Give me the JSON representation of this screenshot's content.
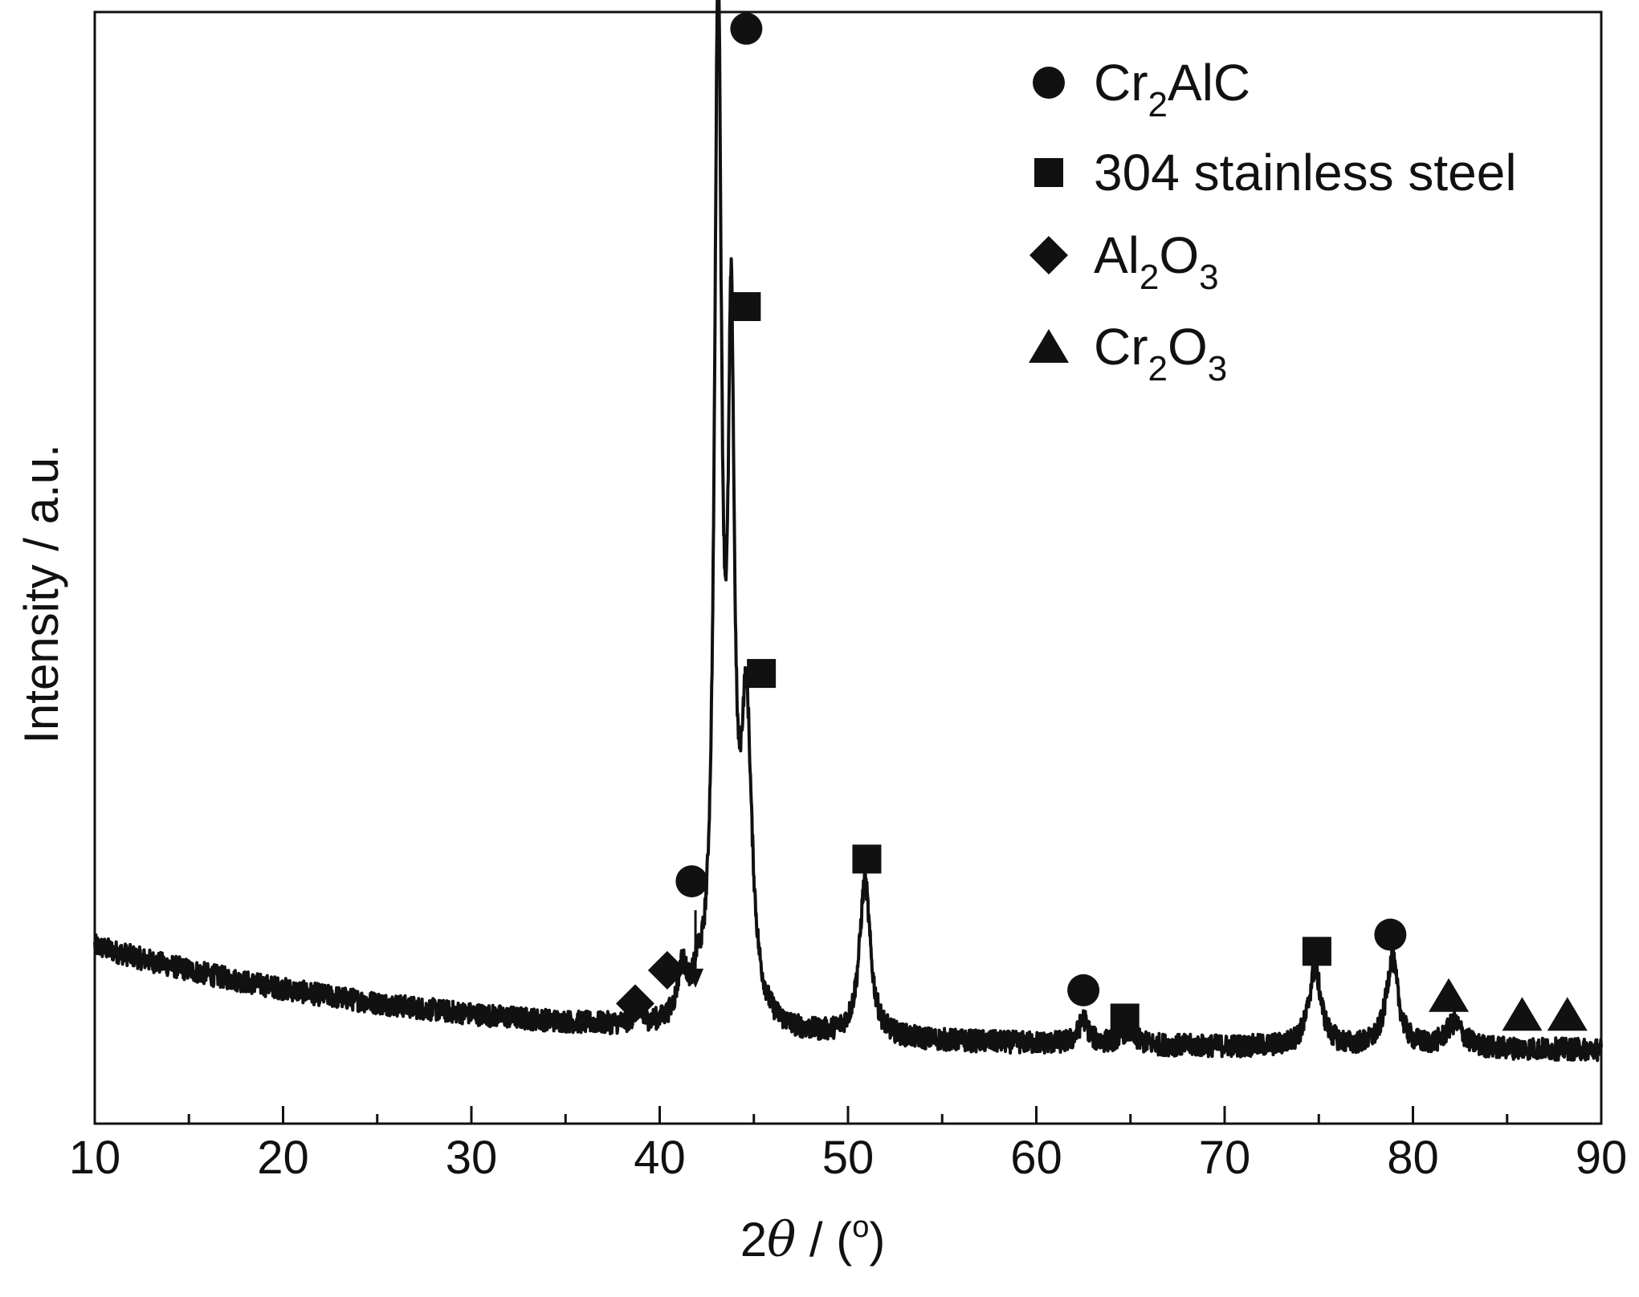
{
  "chart_data": {
    "type": "line",
    "xlabel": {
      "prefix": "2",
      "symbol": "θ",
      "suffix": " / (",
      "degree": "o",
      "close": ")"
    },
    "ylabel": "Intensity / a.u.",
    "xlim": [
      10,
      90
    ],
    "ylim": [
      0,
      1000
    ],
    "x_ticks": [
      "10",
      "20",
      "30",
      "40",
      "50",
      "60",
      "70",
      "80",
      "90"
    ],
    "y_tick_labels": "none",
    "grid": false,
    "legend_position": "top-right",
    "colors": {
      "line": "#111111",
      "marker": "#111111",
      "axis": "#111111"
    },
    "series": [
      {
        "baseline": {
          "start_level": 160,
          "end_level": 65,
          "noise_amplitude": 10
        },
        "peaks": [
          {
            "x": 38.8,
            "height": 15,
            "width": 0.2
          },
          {
            "x": 41.2,
            "height": 45,
            "width": 0.3
          },
          {
            "x": 42.0,
            "height": 25,
            "width": 0.25
          },
          {
            "x": 43.1,
            "height": 920,
            "width": 0.22
          },
          {
            "x": 43.8,
            "height": 560,
            "width": 0.2
          },
          {
            "x": 44.6,
            "height": 270,
            "width": 0.35
          },
          {
            "x": 50.9,
            "height": 140,
            "width": 0.35
          },
          {
            "x": 62.5,
            "height": 22,
            "width": 0.3
          },
          {
            "x": 64.8,
            "height": 12,
            "width": 0.5
          },
          {
            "x": 74.8,
            "height": 70,
            "width": 0.4
          },
          {
            "x": 78.9,
            "height": 80,
            "width": 0.38
          },
          {
            "x": 82.2,
            "height": 22,
            "width": 0.55
          }
        ]
      }
    ],
    "legend": [
      {
        "marker": "circle",
        "main": "Cr",
        "sub": "2",
        "rest": "AlC",
        "sub2": "",
        "rest2": ""
      },
      {
        "marker": "square",
        "main": "304 stainless steel",
        "sub": "",
        "rest": "",
        "sub2": "",
        "rest2": ""
      },
      {
        "marker": "diamond",
        "main": "Al",
        "sub": "2",
        "rest": "O",
        "sub2": "3",
        "rest2": ""
      },
      {
        "marker": "triangle",
        "main": "Cr",
        "sub": "2",
        "rest": "O",
        "sub2": "3",
        "rest2": ""
      }
    ],
    "annotations": [
      {
        "marker": "circle",
        "x": 44.6,
        "y": 985
      },
      {
        "marker": "square",
        "x": 44.6,
        "y": 735
      },
      {
        "marker": "square",
        "x": 45.4,
        "y": 405
      },
      {
        "marker": "square",
        "x": 51.0,
        "y": 238
      },
      {
        "marker": "circle",
        "x": 41.7,
        "y": 218
      },
      {
        "marker": "diamond",
        "x": 40.4,
        "y": 138
      },
      {
        "marker": "diamond",
        "x": 38.7,
        "y": 108
      },
      {
        "marker": "circle",
        "x": 62.5,
        "y": 120
      },
      {
        "marker": "square",
        "x": 64.7,
        "y": 95
      },
      {
        "marker": "square",
        "x": 74.9,
        "y": 155
      },
      {
        "marker": "circle",
        "x": 78.8,
        "y": 170
      },
      {
        "marker": "triangle",
        "x": 81.9,
        "y": 115
      },
      {
        "marker": "triangle",
        "x": 85.8,
        "y": 98
      },
      {
        "marker": "triangle",
        "x": 88.2,
        "y": 98
      }
    ],
    "arrow": {
      "x": 41.9,
      "y_from": 192,
      "y_to": 125
    }
  }
}
